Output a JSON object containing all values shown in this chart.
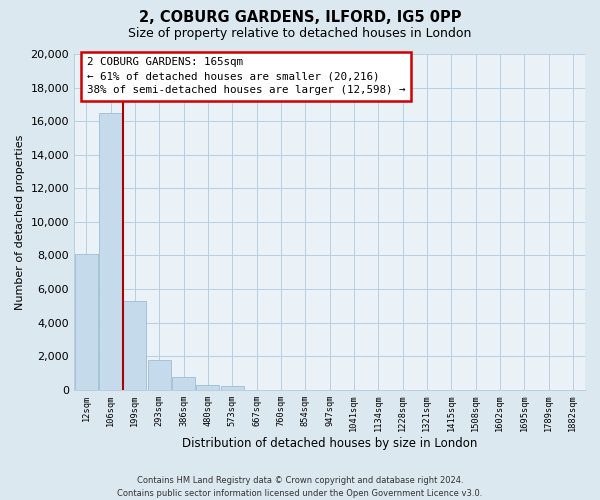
{
  "title1": "2, COBURG GARDENS, ILFORD, IG5 0PP",
  "title2": "Size of property relative to detached houses in London",
  "xlabel": "Distribution of detached houses by size in London",
  "ylabel": "Number of detached properties",
  "bar_labels": [
    "12sqm",
    "106sqm",
    "199sqm",
    "293sqm",
    "386sqm",
    "480sqm",
    "573sqm",
    "667sqm",
    "760sqm",
    "854sqm",
    "947sqm",
    "1041sqm",
    "1134sqm",
    "1228sqm",
    "1321sqm",
    "1415sqm",
    "1508sqm",
    "1602sqm",
    "1695sqm",
    "1789sqm",
    "1882sqm"
  ],
  "bar_values": [
    8100,
    16500,
    5300,
    1800,
    750,
    300,
    200,
    0,
    0,
    0,
    0,
    0,
    0,
    0,
    0,
    0,
    0,
    0,
    0,
    0,
    0
  ],
  "bar_color": "#c5daea",
  "bar_edge_color": "#a0bdd4",
  "vline_color": "#aa0000",
  "vline_x": 1.5,
  "ylim": [
    0,
    20000
  ],
  "yticks": [
    0,
    2000,
    4000,
    6000,
    8000,
    10000,
    12000,
    14000,
    16000,
    18000,
    20000
  ],
  "annotation_title": "2 COBURG GARDENS: 165sqm",
  "annotation_line1": "← 61% of detached houses are smaller (20,216)",
  "annotation_line2": "38% of semi-detached houses are larger (12,598) →",
  "annotation_box_color": "#ffffff",
  "annotation_box_edge": "#cc0000",
  "footer1": "Contains HM Land Registry data © Crown copyright and database right 2024.",
  "footer2": "Contains public sector information licensed under the Open Government Licence v3.0.",
  "background_color": "#dce8f0",
  "plot_bg_color": "#eaf2f8",
  "grid_color": "#b8cfe0"
}
